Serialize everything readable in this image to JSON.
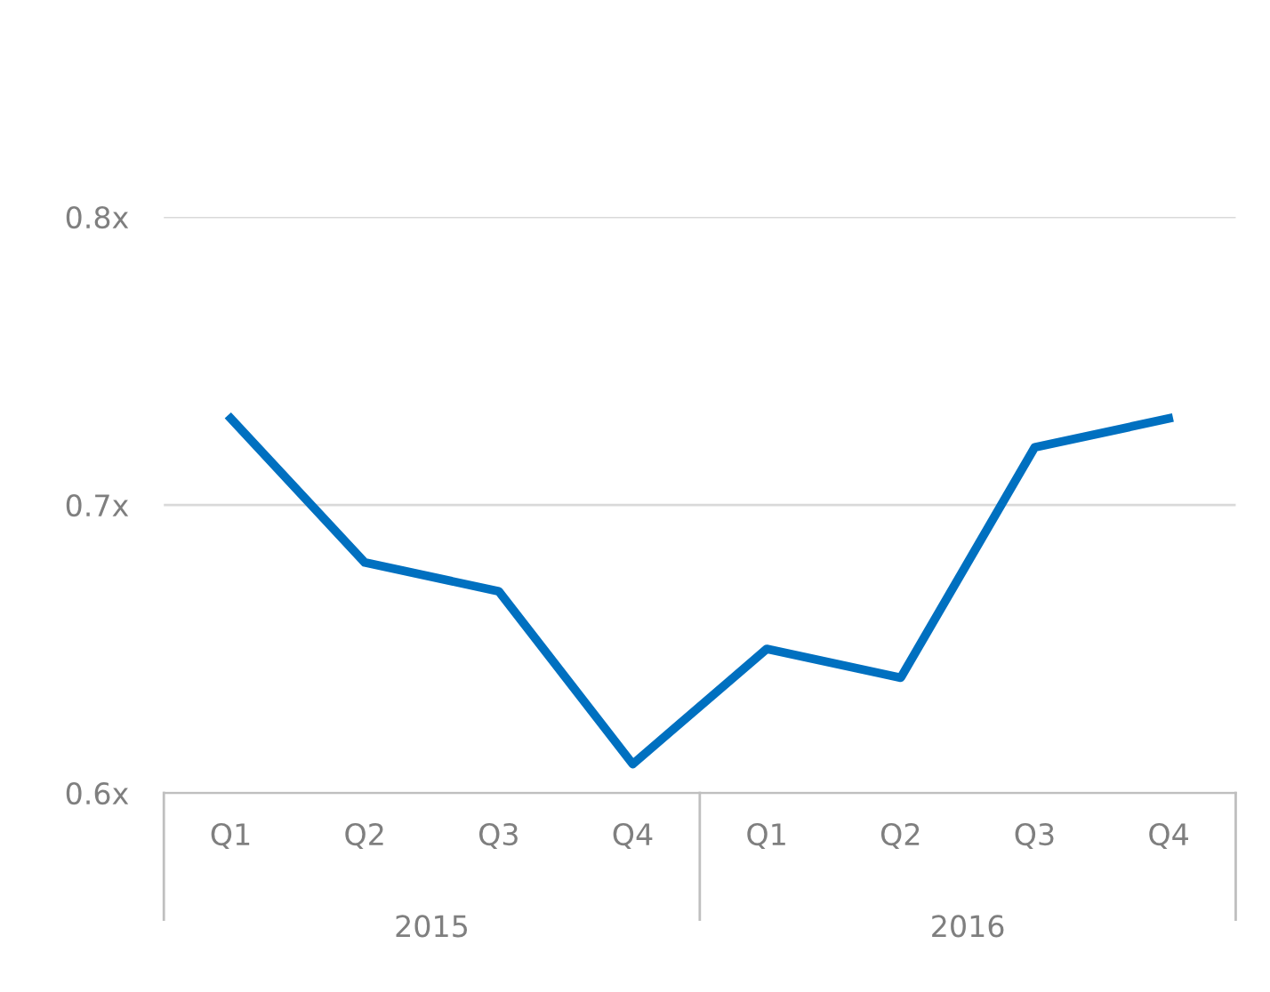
{
  "chart_data": {
    "type": "line",
    "categories": [
      "Q1",
      "Q2",
      "Q3",
      "Q4",
      "Q1",
      "Q2",
      "Q3",
      "Q4"
    ],
    "series": [
      {
        "color": "#0070c0",
        "values": [
          0.73,
          0.68,
          0.67,
          0.61,
          0.65,
          0.64,
          0.72,
          0.73
        ]
      }
    ],
    "annotations": [
      "2015",
      "2016"
    ],
    "ylim": [
      0.6,
      0.8
    ],
    "yticks": [
      {
        "value": 0.6,
        "label": "0.6x"
      },
      {
        "value": 0.7,
        "label": "0.7x"
      },
      {
        "value": 0.8,
        "label": "0.8x"
      }
    ],
    "grid": "y",
    "legend": false,
    "marker": "none",
    "line_style": "solid"
  }
}
